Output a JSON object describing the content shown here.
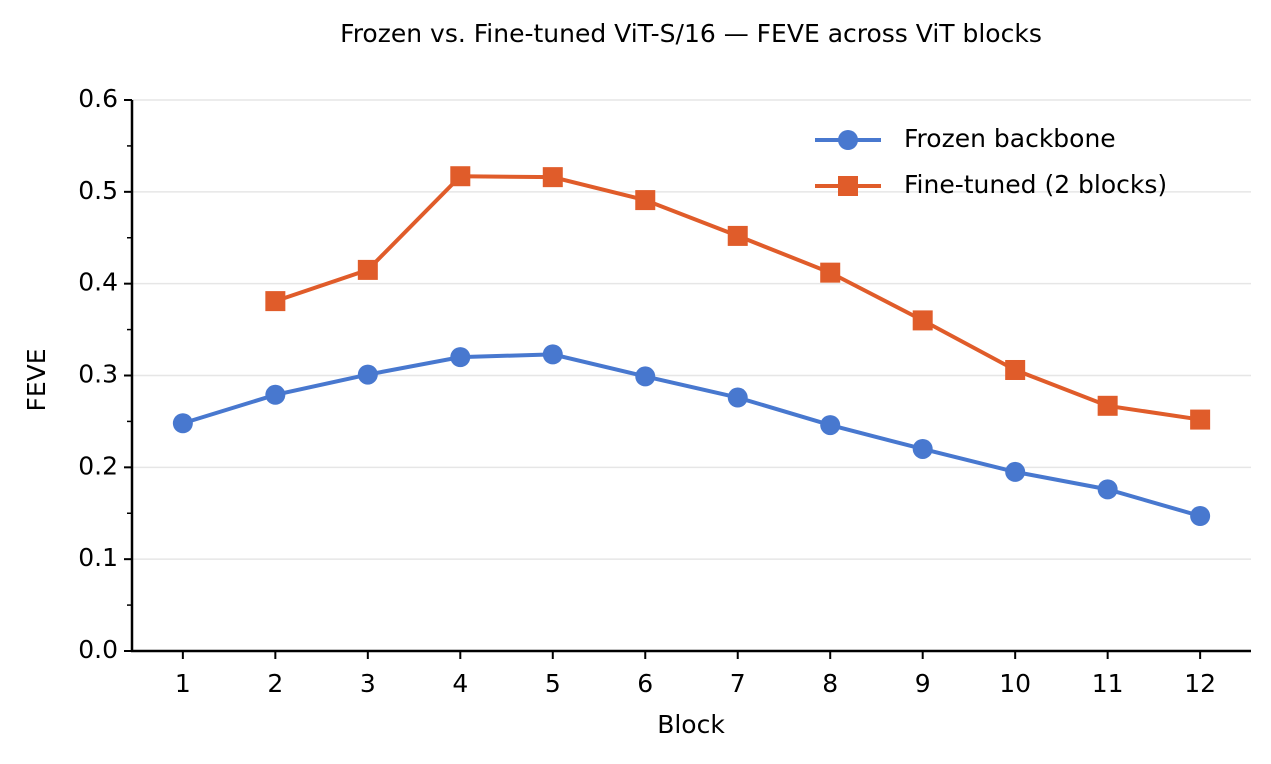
{
  "chart_data": {
    "type": "line",
    "title": "Frozen vs. Fine-tuned ViT-S/16 — FEVE across ViT blocks",
    "x_label": "Block",
    "y_label": "FEVE",
    "x": [
      1,
      2,
      3,
      4,
      5,
      6,
      7,
      8,
      9,
      10,
      11,
      12
    ],
    "series": [
      {
        "name": "Frozen backbone",
        "color": "#4878cf",
        "marker": "circle",
        "values": [
          0.248,
          0.279,
          0.301,
          0.32,
          0.323,
          0.299,
          0.276,
          0.246,
          0.22,
          0.195,
          0.176,
          0.147
        ]
      },
      {
        "name": "Fine-tuned (2 blocks)",
        "color": "#e05c2a",
        "marker": "square",
        "values": [
          null,
          0.381,
          0.415,
          0.517,
          0.516,
          0.491,
          0.452,
          0.412,
          0.36,
          0.306,
          0.267,
          0.252
        ]
      }
    ],
    "xlim": [
      0.45,
      12.55
    ],
    "xticks": [
      1,
      2,
      3,
      4,
      5,
      6,
      7,
      8,
      9,
      10,
      11,
      12
    ],
    "ylim": [
      0,
      0.6
    ],
    "yticks": [
      {
        "value": 0,
        "label": "0.0"
      },
      {
        "value": 0.1,
        "label": "0.1"
      },
      {
        "value": 0.2,
        "label": "0.2"
      },
      {
        "value": 0.3,
        "label": "0.3"
      },
      {
        "value": 0.4,
        "label": "0.4"
      },
      {
        "value": 0.5,
        "label": "0.5"
      },
      {
        "value": 0.6,
        "label": "0.6"
      }
    ],
    "grid": true,
    "legend": "upper right"
  }
}
